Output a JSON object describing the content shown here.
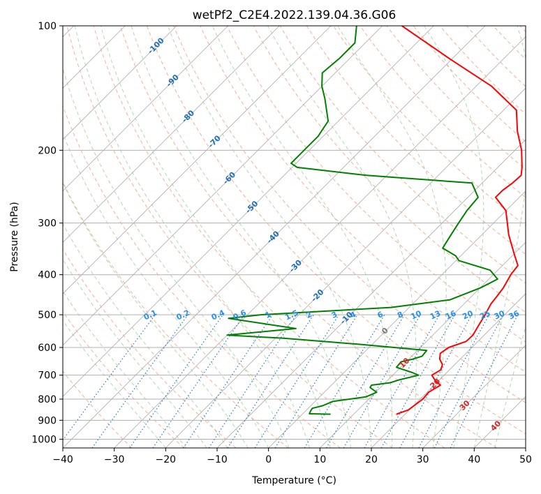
{
  "chart_data": {
    "type": "skew-t",
    "title": "wetPf2_C2E4.2022.139.04.36.G06",
    "xlabel": "Temperature (°C)",
    "ylabel": "Pressure (hPa)",
    "xlim": [
      -40,
      50
    ],
    "ylim_hpa": [
      1050,
      100
    ],
    "x_ticks": [
      "−40",
      "−30",
      "−20",
      "−10",
      "0",
      "10",
      "20",
      "30",
      "40",
      "50"
    ],
    "x_tick_values": [
      -40,
      -30,
      -20,
      -10,
      0,
      10,
      20,
      30,
      40,
      50
    ],
    "y_ticks": [
      "100",
      "200",
      "300",
      "400",
      "500",
      "600",
      "700",
      "800",
      "900",
      "1000"
    ],
    "y_tick_values": [
      100,
      200,
      300,
      400,
      500,
      600,
      700,
      800,
      900,
      1000
    ],
    "isotherm_labels": [
      "-100",
      "-90",
      "-80",
      "-70",
      "-60",
      "-50",
      "-40",
      "-30",
      "-20",
      "-10",
      "0",
      "10",
      "20",
      "30",
      "40"
    ],
    "isotherm_values": [
      -100,
      -90,
      -80,
      -70,
      -60,
      -50,
      -40,
      -30,
      -20,
      -10,
      0,
      10,
      20,
      30,
      40
    ],
    "mixing_ratio_labels": [
      "0.1",
      "0.2",
      "0.4",
      "0.6",
      "1",
      "1.5",
      "2",
      "3",
      "4",
      "6",
      "8",
      "10",
      "13",
      "16",
      "20",
      "25",
      "30",
      "36"
    ],
    "mixing_ratio_values": [
      0.1,
      0.2,
      0.4,
      0.6,
      1,
      1.5,
      2,
      3,
      4,
      6,
      8,
      10,
      13,
      16,
      20,
      25,
      30,
      36
    ],
    "series": [
      {
        "name": "temperature",
        "color": "#ff0000",
        "points": [
          [
            18.3,
            870
          ],
          [
            19.8,
            850
          ],
          [
            20.5,
            800
          ],
          [
            20.3,
            770
          ],
          [
            21.2,
            740
          ],
          [
            19.2,
            720
          ],
          [
            17.6,
            700
          ],
          [
            18.3,
            680
          ],
          [
            17.6,
            660
          ],
          [
            16.0,
            640
          ],
          [
            15.0,
            620
          ],
          [
            15.5,
            600
          ],
          [
            17.7,
            580
          ],
          [
            17.8,
            560
          ],
          [
            17.0,
            530
          ],
          [
            16.2,
            500
          ],
          [
            15.2,
            470
          ],
          [
            14.9,
            450
          ],
          [
            14.5,
            430
          ],
          [
            13.4,
            400
          ],
          [
            13.0,
            380
          ],
          [
            10.5,
            360
          ],
          [
            5.2,
            320
          ],
          [
            0.0,
            280
          ],
          [
            -4.6,
            260
          ],
          [
            -4.6,
            250
          ],
          [
            -4.1,
            240
          ],
          [
            -3.9,
            230
          ],
          [
            -5.3,
            220
          ],
          [
            -8.7,
            200
          ],
          [
            -13.2,
            180
          ],
          [
            -17.5,
            160
          ],
          [
            -27.0,
            140
          ],
          [
            -40.6,
            120
          ],
          [
            -56.2,
            100
          ]
        ]
      },
      {
        "name": "dewpoint",
        "color": "#008000",
        "points": [
          [
            5.5,
            870
          ],
          [
            1.3,
            868
          ],
          [
            1.0,
            855
          ],
          [
            0.8,
            842
          ],
          [
            2.3,
            830
          ],
          [
            3.5,
            810
          ],
          [
            9.0,
            790
          ],
          [
            10.2,
            770
          ],
          [
            8.0,
            750
          ],
          [
            7.8,
            740
          ],
          [
            11.0,
            730
          ],
          [
            12.0,
            720
          ],
          [
            15.0,
            700
          ],
          [
            13.3,
            690
          ],
          [
            9.2,
            670
          ],
          [
            9.0,
            650
          ],
          [
            10.8,
            640
          ],
          [
            12.0,
            630
          ],
          [
            11.8,
            610
          ],
          [
            -2.0,
            590
          ],
          [
            -18.4,
            570
          ],
          [
            -30.0,
            560
          ],
          [
            -17.9,
            540
          ],
          [
            -33.0,
            510
          ],
          [
            -27.4,
            500
          ],
          [
            -3.5,
            480
          ],
          [
            6.5,
            460
          ],
          [
            10.1,
            430
          ],
          [
            11.7,
            410
          ],
          [
            8.5,
            390
          ],
          [
            0.6,
            370
          ],
          [
            -1.0,
            360
          ],
          [
            -5.0,
            345
          ],
          [
            -6.0,
            320
          ],
          [
            -6.8,
            300
          ],
          [
            -7.6,
            280
          ],
          [
            -8.0,
            260
          ],
          [
            -12.0,
            240
          ],
          [
            -34.0,
            230
          ],
          [
            -49.0,
            220
          ],
          [
            -51.0,
            215
          ],
          [
            -51.0,
            200
          ],
          [
            -51.0,
            185
          ],
          [
            -52.0,
            170
          ],
          [
            -57.0,
            150
          ],
          [
            -60.0,
            140
          ],
          [
            -62.5,
            130
          ],
          [
            -62.0,
            120
          ],
          [
            -62.0,
            110
          ],
          [
            -65.0,
            100
          ]
        ]
      }
    ]
  }
}
